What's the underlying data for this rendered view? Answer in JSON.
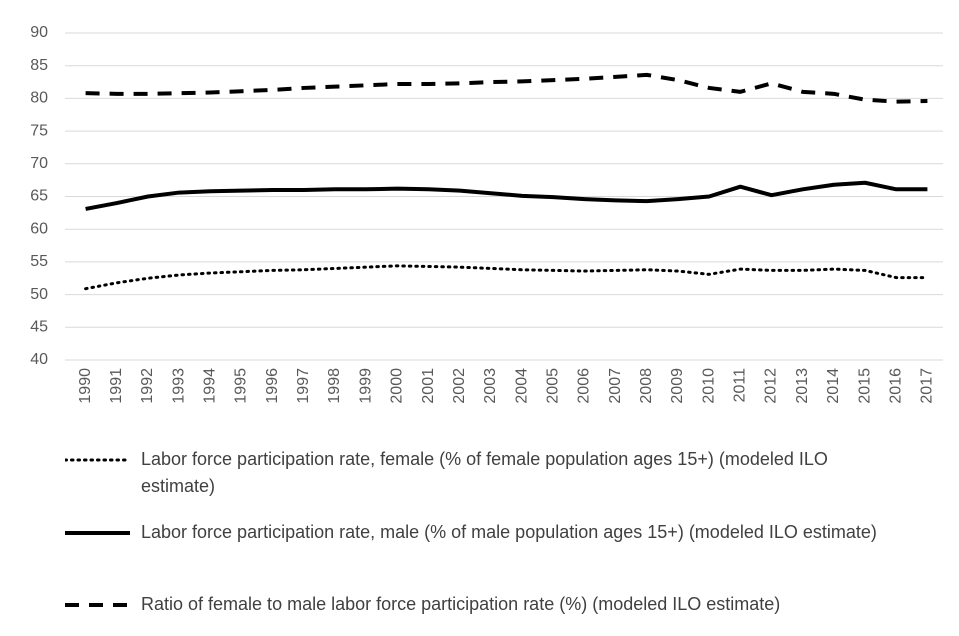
{
  "chart_data": {
    "type": "line",
    "categories": [
      "1990",
      "1991",
      "1992",
      "1993",
      "1994",
      "1995",
      "1996",
      "1997",
      "1998",
      "1999",
      "2000",
      "2001",
      "2002",
      "2003",
      "2004",
      "2005",
      "2006",
      "2007",
      "2008",
      "2009",
      "2010",
      "2011",
      "2012",
      "2013",
      "2014",
      "2015",
      "2016",
      "2017"
    ],
    "series": [
      {
        "name": "Labor force participation rate, female (% of female population ages 15+) (modeled ILO estimate)",
        "color": "#000000",
        "line_style": "dotted",
        "values": [
          50.9,
          51.8,
          52.5,
          53.0,
          53.3,
          53.5,
          53.7,
          53.8,
          54.0,
          54.2,
          54.4,
          54.3,
          54.2,
          54.0,
          53.8,
          53.7,
          53.6,
          53.7,
          53.8,
          53.6,
          53.1,
          53.9,
          53.7,
          53.7,
          53.9,
          53.7,
          52.6,
          52.6
        ]
      },
      {
        "name": "Labor force participation rate, male (% of male population ages 15+) (modeled ILO estimate)",
        "color": "#000000",
        "line_style": "solid",
        "values": [
          63.1,
          64.0,
          65.0,
          65.6,
          65.8,
          65.9,
          66.0,
          66.0,
          66.1,
          66.1,
          66.2,
          66.1,
          65.9,
          65.5,
          65.1,
          64.9,
          64.6,
          64.4,
          64.3,
          64.6,
          65.0,
          66.5,
          65.2,
          66.1,
          66.8,
          67.1,
          66.1,
          66.1
        ]
      },
      {
        "name": "Ratio of female to male labor force participation rate (%) (modeled ILO estimate)",
        "color": "#000000",
        "line_style": "dashed",
        "values": [
          80.8,
          80.7,
          80.7,
          80.8,
          80.9,
          81.1,
          81.3,
          81.6,
          81.8,
          82.0,
          82.2,
          82.2,
          82.3,
          82.5,
          82.6,
          82.8,
          83.0,
          83.3,
          83.6,
          82.8,
          81.6,
          81.0,
          82.3,
          81.0,
          80.7,
          79.8,
          79.5,
          79.6
        ]
      }
    ],
    "ylim": [
      40,
      90
    ],
    "yticks": [
      40,
      45,
      50,
      55,
      60,
      65,
      70,
      75,
      80,
      85,
      90
    ],
    "grid": true,
    "legend": "bottom"
  }
}
